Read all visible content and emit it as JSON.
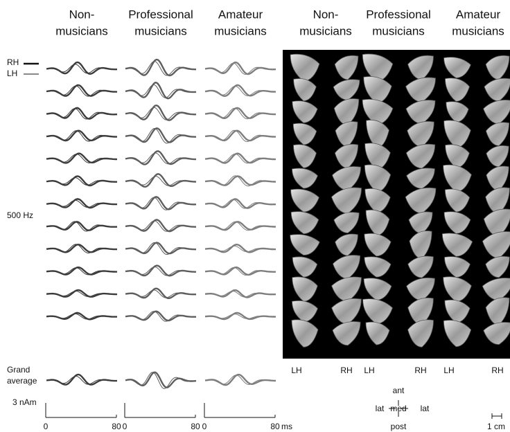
{
  "waveform_panel": {
    "headers": [
      [
        "Non-",
        "musicians"
      ],
      [
        "Professional",
        "musicians"
      ],
      [
        "Amateur",
        "musicians"
      ]
    ],
    "legend": [
      "RH",
      "LH"
    ],
    "frequency_label": "500 Hz",
    "grand_average_label": [
      "Grand",
      "average"
    ],
    "scale_label": "3 nAm",
    "time_ticks": [
      "0",
      "80"
    ],
    "time_unit": "ms"
  },
  "source_panel": {
    "headers": [
      [
        "Non-",
        "musicians"
      ],
      [
        "Professional",
        "musicians"
      ],
      [
        "Amateur",
        "musicians"
      ]
    ],
    "hemisphere_labels": [
      "LH",
      "RH"
    ],
    "orientation": {
      "anterior": "ant",
      "posterior": "post",
      "lateral_left": "lat",
      "medial": "med",
      "lateral_right": "lat"
    },
    "scale_label": "1 cm"
  }
}
